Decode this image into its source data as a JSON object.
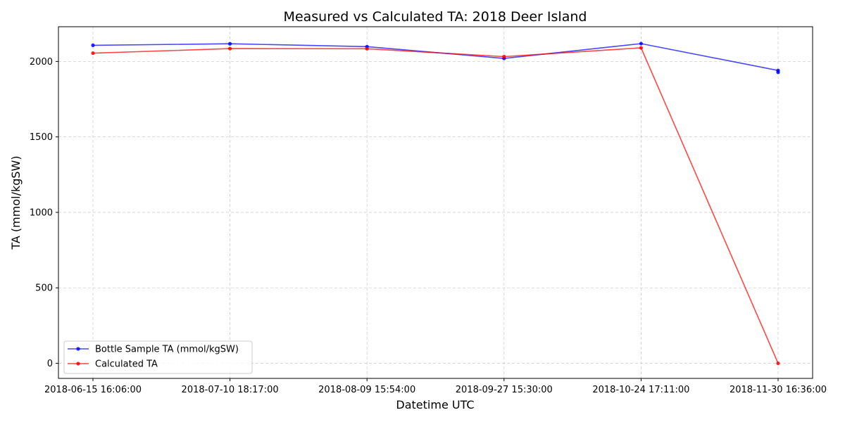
{
  "chart_data": {
    "type": "line",
    "title": "Measured vs Calculated TA: 2018 Deer Island",
    "xlabel": "Datetime UTC",
    "ylabel": "TA (mmol/kgSW)",
    "ylim": [
      -100,
      2230
    ],
    "yticks": [
      0,
      500,
      1000,
      1500,
      2000
    ],
    "categories": [
      "2018-06-15 16:06:00",
      "2018-07-10 18:17:00",
      "2018-08-09 15:54:00",
      "2018-09-27 15:30:00",
      "2018-10-24 17:11:00",
      "2018-11-30 16:36:00"
    ],
    "grid": true,
    "legend_position": "lower-left",
    "series": [
      {
        "name": "Bottle Sample TA (mmol/kgSW)",
        "color": "#0000ff",
        "points": [
          {
            "x": 0,
            "y": 2107
          },
          {
            "x": 1,
            "y": 2117
          },
          {
            "x": 2,
            "y": 2098
          },
          {
            "x": 3,
            "y": 2020
          },
          {
            "x": 4,
            "y": 2118
          },
          {
            "x": 5,
            "y": 1940
          },
          {
            "x": 5,
            "y": 1928
          }
        ]
      },
      {
        "name": "Calculated TA",
        "color": "#ff0000",
        "points": [
          {
            "x": 0,
            "y": 2055
          },
          {
            "x": 1,
            "y": 2085
          },
          {
            "x": 2,
            "y": 2084
          },
          {
            "x": 3,
            "y": 2032
          },
          {
            "x": 4,
            "y": 2090
          },
          {
            "x": 5,
            "y": 0
          }
        ]
      }
    ]
  }
}
